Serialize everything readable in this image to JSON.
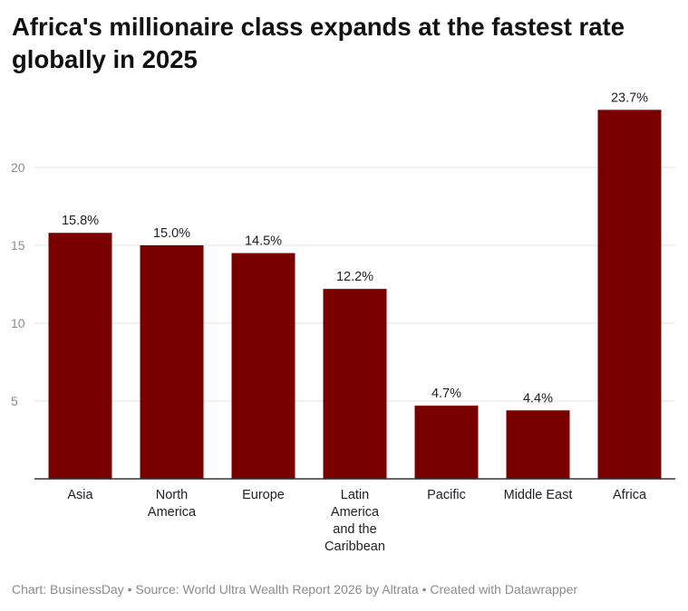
{
  "chart_data": {
    "type": "bar",
    "title": "Africa's millionaire class expands at the fastest rate globally in 2025",
    "categories": [
      [
        "Asia"
      ],
      [
        "North",
        "America"
      ],
      [
        "Europe"
      ],
      [
        "Latin",
        "America",
        "and the",
        "Caribbean"
      ],
      [
        "Pacific"
      ],
      [
        "Middle East"
      ],
      [
        "Africa"
      ]
    ],
    "values": [
      15.8,
      15.0,
      14.5,
      12.2,
      4.7,
      4.4,
      23.7
    ],
    "data_labels": [
      "15.8%",
      "15.0%",
      "14.5%",
      "12.2%",
      "4.7%",
      "4.4%",
      "23.7%"
    ],
    "y_ticks": [
      5,
      10,
      15,
      20
    ],
    "ylim": [
      0,
      25
    ],
    "bar_color": "#7a0000",
    "grid": true,
    "legend": false
  },
  "footer": {
    "text": "Chart: BusinessDay • Source: World Ultra Wealth Report 2026 by Altrata • Created with Datawrapper"
  }
}
